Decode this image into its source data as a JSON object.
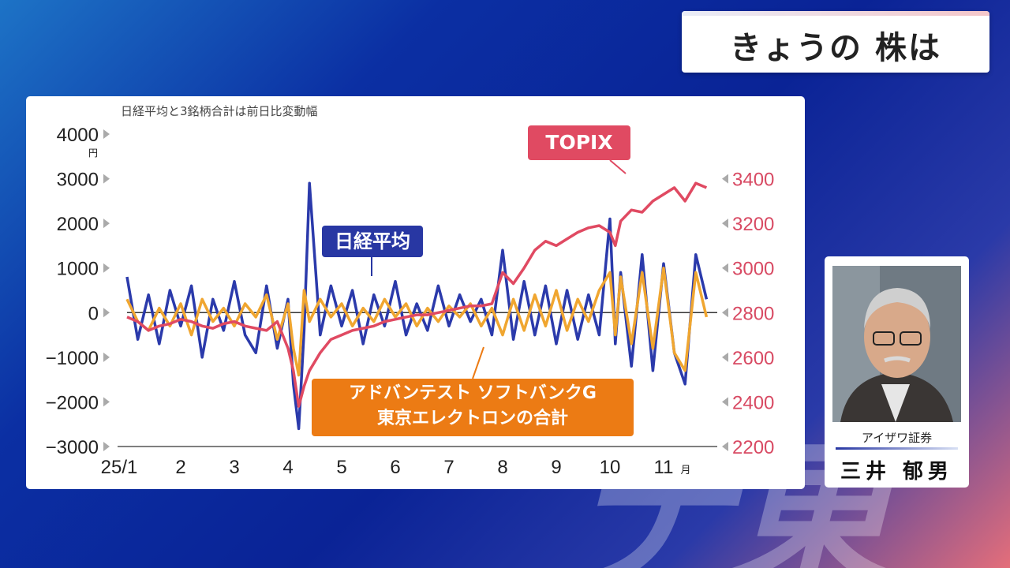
{
  "headline": "きょうの 株は",
  "watermark": "テ東",
  "chart_data": {
    "type": "line",
    "note": "日経平均と3銘柄合計は前日比変動幅",
    "x_ticks": [
      "25/1",
      "2",
      "3",
      "4",
      "5",
      "6",
      "7",
      "8",
      "9",
      "10",
      "11"
    ],
    "x_unit": "月",
    "y_left": {
      "ticks": [
        "4000",
        "3000",
        "2000",
        "1000",
        "0",
        "−1000",
        "−2000",
        "−3000"
      ],
      "unit": "円",
      "range": [
        -3000,
        4000
      ]
    },
    "y_right": {
      "ticks": [
        "3400",
        "3200",
        "3000",
        "2800",
        "2600",
        "2400",
        "2200"
      ],
      "range": [
        2200,
        3600
      ]
    },
    "series": [
      {
        "name": "日経平均",
        "axis": "left",
        "color": "#2b3aab",
        "x": [
          1.0,
          1.2,
          1.4,
          1.6,
          1.8,
          2.0,
          2.2,
          2.4,
          2.6,
          2.8,
          3.0,
          3.2,
          3.4,
          3.6,
          3.8,
          4.0,
          4.1,
          4.2,
          4.3,
          4.4,
          4.6,
          4.8,
          5.0,
          5.2,
          5.4,
          5.6,
          5.8,
          6.0,
          6.2,
          6.4,
          6.6,
          6.8,
          7.0,
          7.2,
          7.4,
          7.6,
          7.8,
          8.0,
          8.2,
          8.4,
          8.6,
          8.8,
          9.0,
          9.2,
          9.4,
          9.6,
          9.8,
          10.0,
          10.1,
          10.2,
          10.4,
          10.6,
          10.8,
          11.0,
          11.2,
          11.4,
          11.6,
          11.8
        ],
        "y": [
          800,
          -600,
          400,
          -700,
          500,
          -300,
          600,
          -1000,
          300,
          -400,
          700,
          -500,
          -900,
          600,
          -800,
          300,
          -1600,
          -2600,
          -400,
          2900,
          -500,
          600,
          -300,
          500,
          -700,
          400,
          -300,
          700,
          -500,
          200,
          -400,
          600,
          -300,
          400,
          -200,
          300,
          -500,
          1400,
          -600,
          700,
          -500,
          600,
          -700,
          500,
          -600,
          400,
          -500,
          2100,
          -700,
          900,
          -1200,
          1300,
          -1300,
          1100,
          -900,
          -1600,
          1300,
          300
        ],
        "label": "日経平均"
      },
      {
        "name": "TOPIX",
        "axis": "right",
        "color": "#e04a62",
        "x": [
          1.0,
          1.2,
          1.4,
          1.6,
          1.8,
          2.0,
          2.2,
          2.4,
          2.6,
          2.8,
          3.0,
          3.2,
          3.4,
          3.6,
          3.8,
          4.0,
          4.1,
          4.2,
          4.3,
          4.4,
          4.6,
          4.8,
          5.0,
          5.2,
          5.4,
          5.6,
          5.8,
          6.0,
          6.2,
          6.4,
          6.6,
          6.8,
          7.0,
          7.2,
          7.4,
          7.6,
          7.8,
          8.0,
          8.2,
          8.4,
          8.6,
          8.8,
          9.0,
          9.2,
          9.4,
          9.6,
          9.8,
          10.0,
          10.1,
          10.2,
          10.4,
          10.6,
          10.8,
          11.0,
          11.2,
          11.4,
          11.6,
          11.8
        ],
        "y": [
          2780,
          2760,
          2720,
          2740,
          2750,
          2770,
          2760,
          2740,
          2730,
          2750,
          2760,
          2740,
          2730,
          2720,
          2760,
          2640,
          2540,
          2380,
          2470,
          2540,
          2620,
          2680,
          2700,
          2720,
          2730,
          2740,
          2760,
          2770,
          2780,
          2790,
          2790,
          2800,
          2810,
          2820,
          2830,
          2830,
          2840,
          2980,
          2930,
          3000,
          3080,
          3120,
          3100,
          3130,
          3160,
          3180,
          3190,
          3160,
          3100,
          3210,
          3260,
          3250,
          3300,
          3330,
          3360,
          3300,
          3380,
          3360
        ],
        "label": "TOPIX"
      },
      {
        "name": "アドバンテスト ソフトバンクG 東京エレクトロンの合計",
        "axis": "left",
        "color": "#f0a630",
        "x": [
          1.0,
          1.2,
          1.4,
          1.6,
          1.8,
          2.0,
          2.2,
          2.4,
          2.6,
          2.8,
          3.0,
          3.2,
          3.4,
          3.6,
          3.8,
          4.0,
          4.1,
          4.2,
          4.3,
          4.4,
          4.6,
          4.8,
          5.0,
          5.2,
          5.4,
          5.6,
          5.8,
          6.0,
          6.2,
          6.4,
          6.6,
          6.8,
          7.0,
          7.2,
          7.4,
          7.6,
          7.8,
          8.0,
          8.2,
          8.4,
          8.6,
          8.8,
          9.0,
          9.2,
          9.4,
          9.6,
          9.8,
          10.0,
          10.1,
          10.2,
          10.4,
          10.6,
          10.8,
          11.0,
          11.2,
          11.4,
          11.6,
          11.8
        ],
        "y": [
          300,
          -200,
          -400,
          100,
          -300,
          200,
          -500,
          300,
          -200,
          100,
          -300,
          200,
          -100,
          400,
          -600,
          200,
          -800,
          -1400,
          500,
          -200,
          300,
          -100,
          200,
          -300,
          100,
          -200,
          300,
          -100,
          200,
          -300,
          100,
          -200,
          150,
          -100,
          200,
          -300,
          100,
          -500,
          300,
          -400,
          400,
          -300,
          500,
          -400,
          300,
          -200,
          500,
          900,
          -500,
          800,
          -700,
          900,
          -800,
          1000,
          -900,
          -1300,
          900,
          -100
        ],
        "label": "アドバンテスト ソフトバンクG\n東京エレクトロンの合計"
      }
    ],
    "grid": false,
    "legend": "callouts"
  },
  "callouts": {
    "nikkei": "日経平均",
    "topix": "TOPIX",
    "combo_line1": "アドバンテスト ソフトバンクG",
    "combo_line2": "東京エレクトロンの合計"
  },
  "commentator": {
    "company": "アイザワ証券",
    "name": "三井 郁男"
  }
}
